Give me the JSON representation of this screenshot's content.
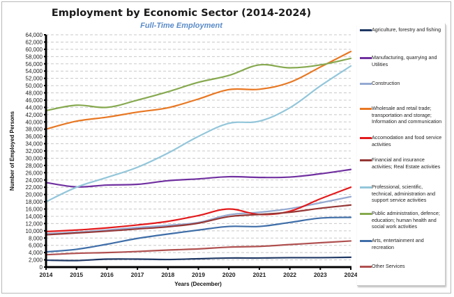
{
  "chart_data": {
    "type": "line",
    "title": "Employment by Economic Sector (2014-2024)",
    "subtitle": "Full-Time Employment",
    "xlabel": "Years (December)",
    "ylabel": "Number of Employed Persons",
    "x": [
      "2014",
      "2015",
      "2016",
      "2017",
      "2018",
      "2019",
      "2020",
      "2021",
      "2022",
      "2023",
      "2024"
    ],
    "ylim": [
      0,
      64000
    ],
    "ytick_step": 2000,
    "yticks": [
      "0",
      "2,000",
      "4,000",
      "6,000",
      "8,000",
      "10,000",
      "12,000",
      "14,000",
      "16,000",
      "18,000",
      "20,000",
      "22,000",
      "24,000",
      "26,000",
      "28,000",
      "30,000",
      "32,000",
      "34,000",
      "36,000",
      "38,000",
      "40,000",
      "42,000",
      "44,000",
      "46,000",
      "48,000",
      "50,000",
      "52,000",
      "54,000",
      "56,000",
      "58,000",
      "60,000",
      "62,000",
      "64,000"
    ],
    "grid": "horizontal dashed",
    "legend_position": "right",
    "series": [
      {
        "name": "Agriculture, forestry and fishing",
        "color": "#1f3864",
        "values": [
          1900,
          1800,
          2200,
          2200,
          2100,
          2300,
          2500,
          2500,
          2600,
          2600,
          2700
        ]
      },
      {
        "name": "Manufacturing, quarrying and Utilities",
        "color": "#7030a0",
        "values": [
          23300,
          22100,
          22600,
          22800,
          23800,
          24300,
          24900,
          24700,
          24800,
          25700,
          26900
        ]
      },
      {
        "name": "Construction",
        "color": "#95a9d1",
        "values": [
          9200,
          9600,
          10200,
          10900,
          11500,
          12300,
          14400,
          15100,
          16100,
          17700,
          19400
        ]
      },
      {
        "name": "Wholesale and retail trade; transportation and storage; Information and communication",
        "color": "#e87722",
        "values": [
          38000,
          40200,
          41300,
          42700,
          43900,
          46300,
          48900,
          49000,
          50900,
          55100,
          59400
        ]
      },
      {
        "name": "Accomodation and food service activities",
        "color": "#e31a1c",
        "values": [
          9800,
          10200,
          10800,
          11600,
          12600,
          14200,
          16000,
          14500,
          15400,
          18800,
          22000
        ]
      },
      {
        "name": "Financial and insurance activities; Real Estate activities",
        "color": "#953735",
        "values": [
          8900,
          9400,
          9900,
          10500,
          11100,
          12100,
          13900,
          14500,
          15100,
          16200,
          17100
        ]
      },
      {
        "name": "Professional, scientific, technical, administration and support service activities",
        "color": "#93c6da",
        "values": [
          18000,
          22000,
          24700,
          27500,
          31400,
          36000,
          39600,
          40200,
          43900,
          49900,
          55400
        ]
      },
      {
        "name": "Public administration, defence; education; human health and social work activities",
        "color": "#86a94f",
        "values": [
          43100,
          44600,
          44000,
          46000,
          48300,
          50900,
          52800,
          55700,
          54900,
          55700,
          57500
        ]
      },
      {
        "name": "Arts, entertainment and recreation",
        "color": "#3f6ea8",
        "values": [
          4200,
          4900,
          6300,
          7900,
          9100,
          10200,
          11200,
          11200,
          12300,
          13500,
          13700
        ]
      },
      {
        "name": "Other Services",
        "color": "#b05050",
        "values": [
          3400,
          3800,
          4000,
          4300,
          4700,
          5000,
          5500,
          5700,
          6200,
          6700,
          7200
        ]
      }
    ]
  },
  "legend": {
    "items": [
      {
        "label": "Agriculture, forestry and fishing",
        "color": "#1f3864"
      },
      {
        "label": "Manufacturing, quarrying and Utilities",
        "color": "#7030a0"
      },
      {
        "label": "Construction",
        "color": "#95a9d1"
      },
      {
        "label": "Wholesale and retail trade; transportation and storage; Information and communication",
        "color": "#e87722"
      },
      {
        "label": "Accomodation and food service activities",
        "color": "#e31a1c"
      },
      {
        "label": "Financial and insurance activities; Real Estate activities",
        "color": "#953735"
      },
      {
        "label": "Professional, scientific, technical, administration and support service activities",
        "color": "#93c6da"
      },
      {
        "label": "Public administration, defence; education; human health and social work activities",
        "color": "#86a94f"
      },
      {
        "label": "Arts, entertainment and recreation",
        "color": "#3f6ea8"
      },
      {
        "label": "Other Services",
        "color": "#b05050"
      }
    ]
  }
}
